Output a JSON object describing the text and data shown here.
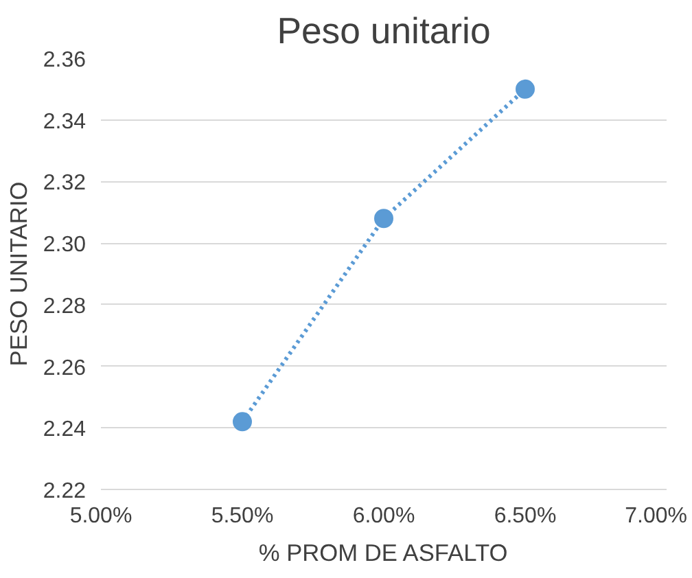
{
  "chart_data": {
    "type": "line",
    "title": "Peso unitario",
    "xlabel": "% PROM DE ASFALTO",
    "ylabel": "PESO UNITARIO",
    "x": [
      5.5,
      6.0,
      6.5
    ],
    "series": [
      {
        "color": "#5b9bd5",
        "values": [
          2.242,
          2.308,
          2.35
        ]
      }
    ],
    "marker": "circle",
    "line_style": "dotted",
    "grid": "y",
    "xlim": [
      5.0,
      7.0
    ],
    "xticks": [
      {
        "value": 5.0,
        "label": "5.00%"
      },
      {
        "value": 5.5,
        "label": "5.50%"
      },
      {
        "value": 6.0,
        "label": "6.00%"
      },
      {
        "value": 6.5,
        "label": "6.50%"
      },
      {
        "value": 7.0,
        "label": "7.00%"
      }
    ],
    "ylim": [
      2.22,
      2.36
    ],
    "yticks": [
      {
        "value": 2.22,
        "label": "2.22"
      },
      {
        "value": 2.24,
        "label": "2.24"
      },
      {
        "value": 2.26,
        "label": "2.26"
      },
      {
        "value": 2.28,
        "label": "2.28"
      },
      {
        "value": 2.3,
        "label": "2.30"
      },
      {
        "value": 2.32,
        "label": "2.32"
      },
      {
        "value": 2.34,
        "label": "2.34"
      },
      {
        "value": 2.36,
        "label": "2.36"
      }
    ]
  }
}
